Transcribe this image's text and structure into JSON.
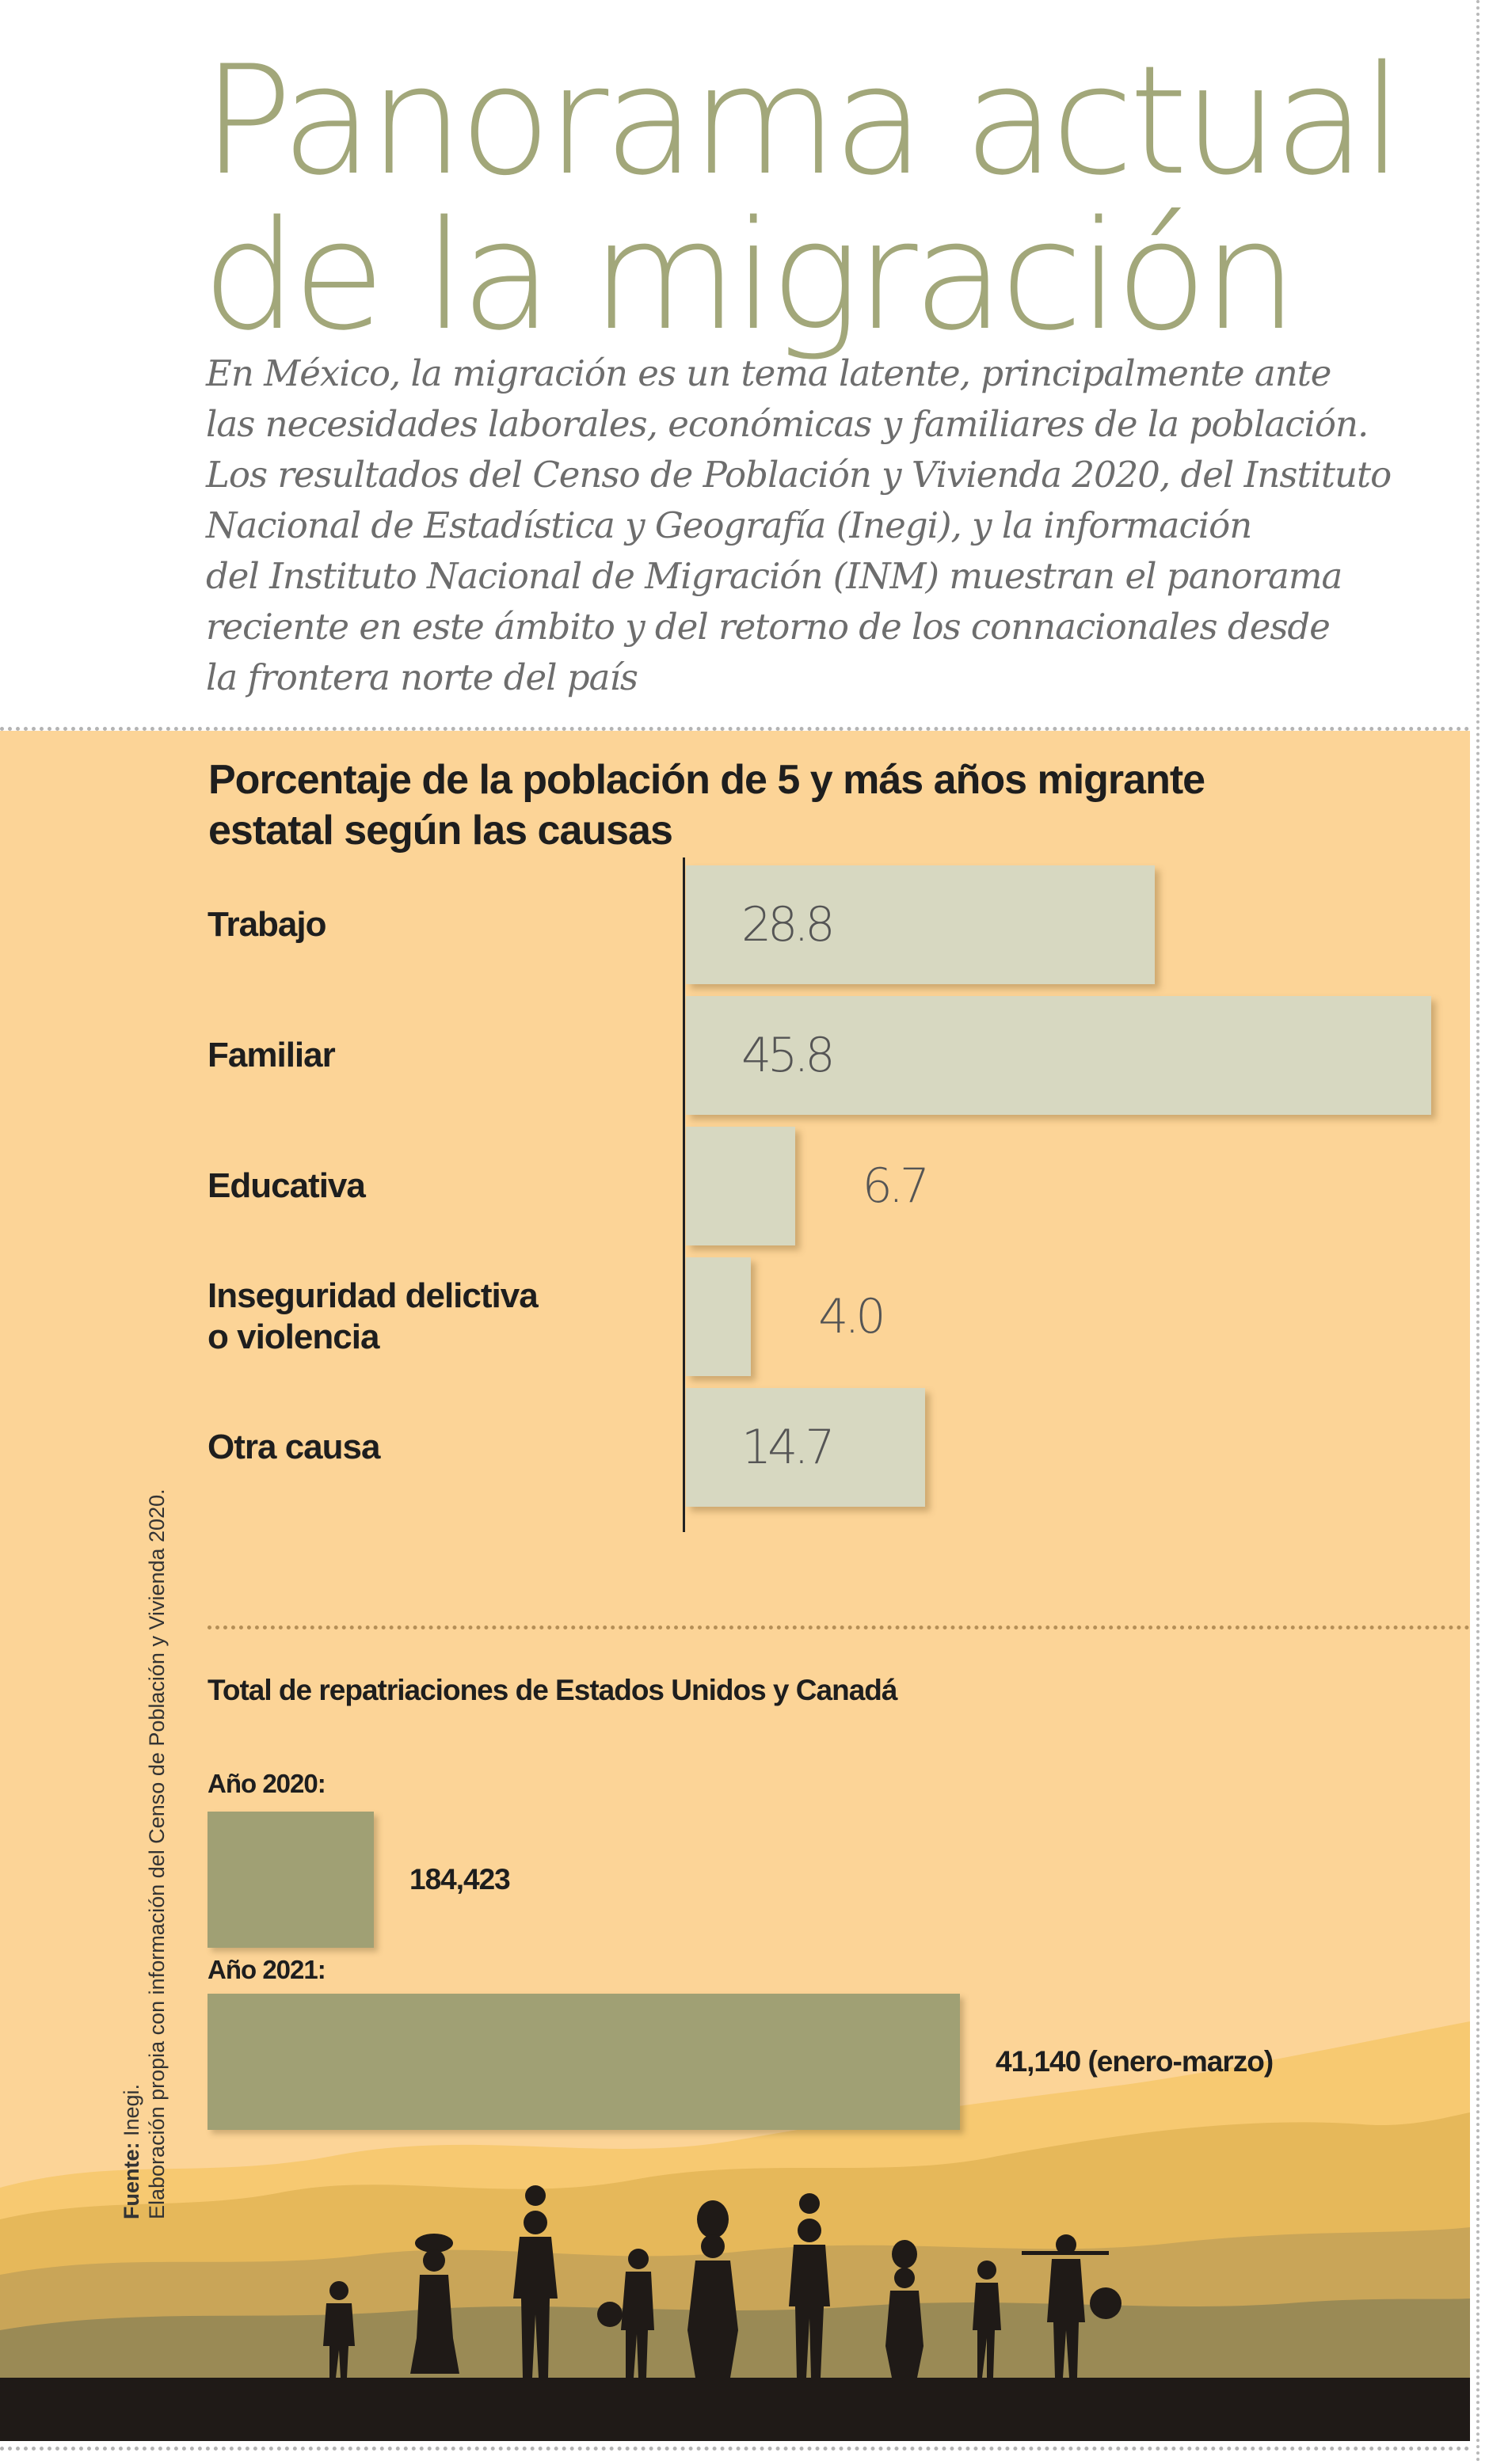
{
  "header": {
    "title_lines": [
      "Panorama actual",
      "de la migración"
    ],
    "intro_lines": [
      "En México, la migración es un tema latente, principalmente ante",
      "las necesidades laborales, económicas y familiares de la población.",
      "Los resultados del Censo de Población y Vivienda 2020, del Instituto",
      "Nacional de Estadística y Geografía (Inegi), y la información",
      "del Instituto Nacional de Migración (INM) muestran el panorama",
      "reciente en este ámbito y del retorno de los connacionales desde",
      "la frontera norte del país"
    ]
  },
  "colors": {
    "title": "#a2a77a",
    "panel_background": "#fcd497",
    "cause_bar": "#d7d8c1",
    "repatriation_bar": "#a0a074",
    "silhouette": "#1f1a17"
  },
  "chart_data": [
    {
      "type": "bar",
      "orientation": "horizontal",
      "title_lines": [
        "Porcentaje de la población de 5 y más años migrante",
        "estatal según las causas"
      ],
      "categories": [
        "Trabajo",
        "Familiar",
        "Educativa",
        "Inseguridad delictiva\no violencia",
        "Otra causa"
      ],
      "values": [
        28.8,
        45.8,
        6.7,
        4.0,
        14.7
      ],
      "value_labels": [
        "28.8",
        "45.8",
        "6.7",
        "4.0",
        "14.7"
      ],
      "xlim": [
        0,
        46
      ],
      "grid": false
    },
    {
      "type": "bar",
      "orientation": "horizontal",
      "title": "Total de repatriaciones de Estados Unidos y Canadá",
      "categories": [
        "Año 2020:",
        "Año 2021:"
      ],
      "values": [
        184423,
        41140
      ],
      "value_labels": [
        "184,423",
        "41,140 (enero-marzo)"
      ],
      "grid": false
    }
  ],
  "source": {
    "label": "Fuente:",
    "text_line1": " Inegi.",
    "text_line2": "Elaboración propia con información del Censo de Población y Vivienda 2020."
  }
}
